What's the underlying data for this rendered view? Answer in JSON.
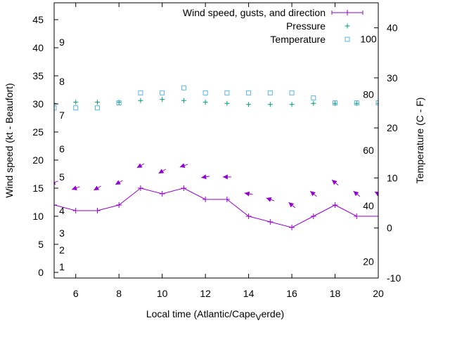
{
  "chart_data": {
    "type": "line",
    "title": "",
    "xlabel": "Local time (Atlantic/Cape",
    "xlabel_sub": "V",
    "xlabel_tail": "erde)",
    "ylabel_left": "Wind speed (kt - Beaufort)",
    "ylabel_right": "Temperature (C - F)",
    "xlim": [
      5,
      20
    ],
    "ylim_left": [
      -1,
      48
    ],
    "ylim_right": [
      -10,
      45
    ],
    "x_ticks": [
      6,
      8,
      10,
      12,
      14,
      16,
      18,
      20
    ],
    "y_ticks_left": [
      0,
      5,
      10,
      15,
      20,
      25,
      30,
      35,
      40,
      45
    ],
    "y_ticks_right": [
      -10,
      0,
      10,
      20,
      30,
      40
    ],
    "beaufort_labels": [
      {
        "label": "1",
        "kt": 1
      },
      {
        "label": "2",
        "kt": 4
      },
      {
        "label": "3",
        "kt": 7
      },
      {
        "label": "4",
        "kt": 11
      },
      {
        "label": "5",
        "kt": 17
      },
      {
        "label": "6",
        "kt": 22
      },
      {
        "label": "7",
        "kt": 28
      },
      {
        "label": "8",
        "kt": 34
      },
      {
        "label": "9",
        "kt": 41
      }
    ],
    "fahrenheit_labels": [
      {
        "label": "20",
        "celsius": -6.67
      },
      {
        "label": "40",
        "celsius": 4.44
      },
      {
        "label": "60",
        "celsius": 15.56
      },
      {
        "label": "80",
        "celsius": 26.67
      },
      {
        "label": "100",
        "celsius": 37.78
      }
    ],
    "legend_position": "top-right",
    "series": [
      {
        "name": "Wind speed, gusts, and direction",
        "color": "#9400d3",
        "x": [
          5,
          6,
          7,
          8,
          9,
          10,
          11,
          12,
          13,
          14,
          15,
          16,
          17,
          18,
          19,
          20
        ],
        "speed": [
          12,
          11,
          11,
          12,
          15,
          14,
          15,
          13,
          13,
          10,
          9,
          8,
          10,
          12,
          10,
          10
        ],
        "gust": [
          16,
          15,
          15,
          16,
          19,
          18,
          19,
          17,
          17,
          14,
          13,
          12,
          14,
          16,
          14,
          14
        ],
        "direction_deg": [
          70,
          70,
          60,
          60,
          60,
          60,
          70,
          80,
          90,
          100,
          110,
          130,
          130,
          130,
          130,
          120
        ]
      },
      {
        "name": "Pressure",
        "color": "#009e73",
        "x": [
          5,
          6,
          7,
          8,
          9,
          10,
          11,
          12,
          13,
          14,
          15,
          16,
          17,
          18,
          19,
          20
        ],
        "values": [
          30.1,
          30.3,
          30.3,
          30.3,
          30.6,
          30.8,
          30.6,
          30.3,
          30.1,
          29.9,
          29.9,
          29.9,
          30.1,
          30.1,
          30.1,
          30.1
        ]
      },
      {
        "name": "Temperature",
        "color": "#56b4e9",
        "x": [
          5,
          6,
          7,
          8,
          9,
          10,
          11,
          12,
          13,
          14,
          15,
          16,
          17,
          18,
          19,
          20
        ],
        "values": [
          24,
          24,
          24,
          25,
          27,
          27,
          28,
          27,
          27,
          27,
          27,
          27,
          26,
          25,
          25,
          25
        ]
      }
    ]
  }
}
